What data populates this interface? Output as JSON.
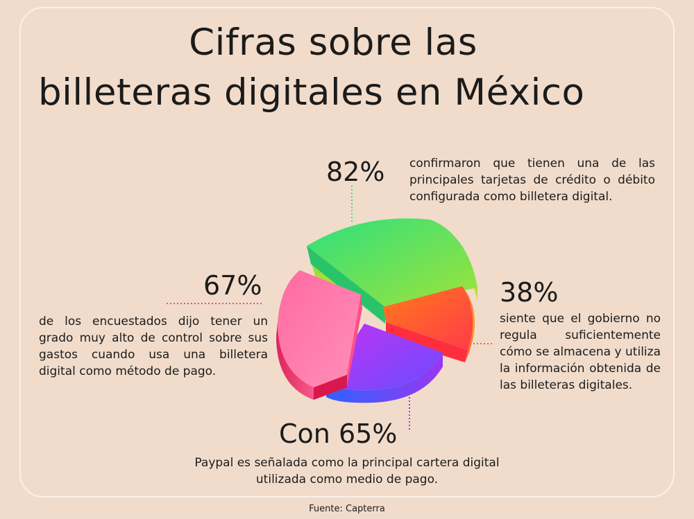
{
  "title": {
    "line1": "Cifras sobre las",
    "line2": "billeteras digitales en México"
  },
  "stats": [
    {
      "value": "82%",
      "text": "confirmaron que tienen una de las principales tarjetas de crédito o débito configurada como billetera digital.",
      "color": "#3ee07a"
    },
    {
      "value": "38%",
      "text": "siente que el gobierno no regula suficientemente cómo se almacena y utiliza la información obtenida de las billeteras digitales.",
      "color": "#ff5a3c"
    },
    {
      "value": "67%",
      "text": "de los encuestados dijo tener un grado muy alto de control sobre sus gastos cuando usa una billetera digital como método de pago.",
      "color": "#f0457a"
    },
    {
      "value": "Con 65%",
      "text": "Paypal es señalada como la principal cartera digital utilizada como medio de pago.",
      "color": "#8a3cf0"
    }
  ],
  "source": "Fuente: Capterra"
}
